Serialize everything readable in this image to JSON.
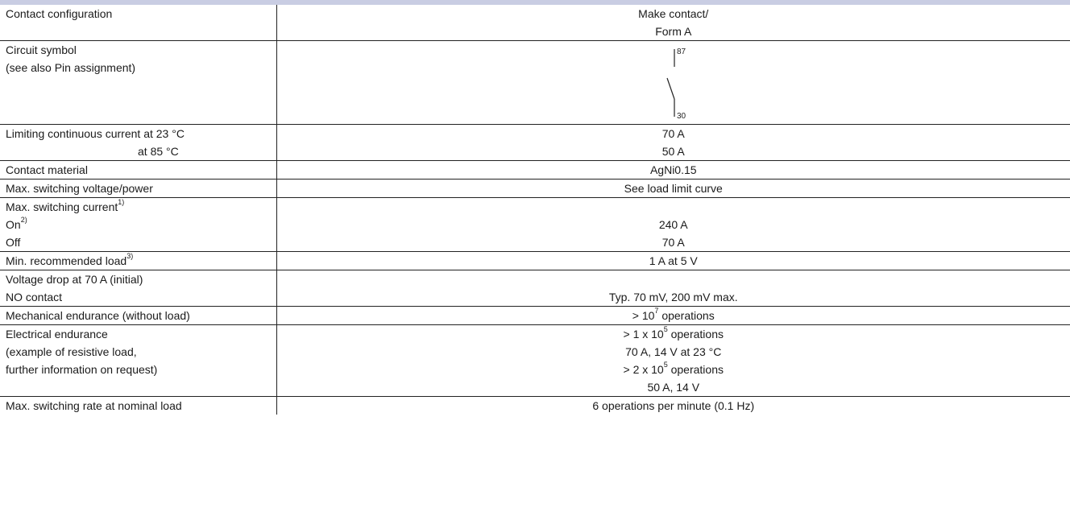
{
  "rows": {
    "contact_config": {
      "label": "Contact configuration",
      "value_line1": "Make contact/",
      "value_line2": "Form A"
    },
    "circuit_symbol": {
      "label_line1": "Circuit symbol",
      "label_line2": "(see also Pin assignment)",
      "pin_top": "87",
      "pin_bottom": "30"
    },
    "limiting_current": {
      "label_line1": "Limiting continuous  current at 23 °C",
      "label_line2": "at 85 °C",
      "value_line1": "70 A",
      "value_line2": "50 A"
    },
    "contact_material": {
      "label": "Contact material",
      "value": "AgNi0.15"
    },
    "max_voltage_power": {
      "label": "Max. switching voltage/power",
      "value": "See load limit curve"
    },
    "max_switching_current": {
      "label": "Max. switching current",
      "label_sup": "1)",
      "on_label": "On",
      "on_sup": "2)",
      "on_value": "240 A",
      "off_label": "Off",
      "off_value": "70 A"
    },
    "min_load": {
      "label": "Min. recommended load",
      "label_sup": "3)",
      "value": "1 A at 5 V"
    },
    "voltage_drop": {
      "label_line1": "Voltage drop at 70 A (initial)",
      "label_line2": "NO contact",
      "value": "Typ. 70 mV, 200 mV max."
    },
    "mech_endurance": {
      "label": "Mechanical endurance (without load)",
      "value_pre": "> 10",
      "value_sup": "7",
      "value_post": " operations"
    },
    "elec_endurance": {
      "label_line1": "Electrical endurance",
      "label_line2": "(example of resistive load,",
      "label_line3": "further information on request)",
      "v1_pre": "> 1 x 10",
      "v1_sup": "5",
      "v1_post": " operations",
      "v2": "70 A, 14 V at 23 °C",
      "v3_pre": "> 2 x 10",
      "v3_sup": "5",
      "v3_post": " operations",
      "v4": "50 A, 14 V"
    },
    "max_rate": {
      "label": "Max. switching rate at nominal load",
      "value": "6 operations per minute (0.1 Hz)"
    }
  }
}
